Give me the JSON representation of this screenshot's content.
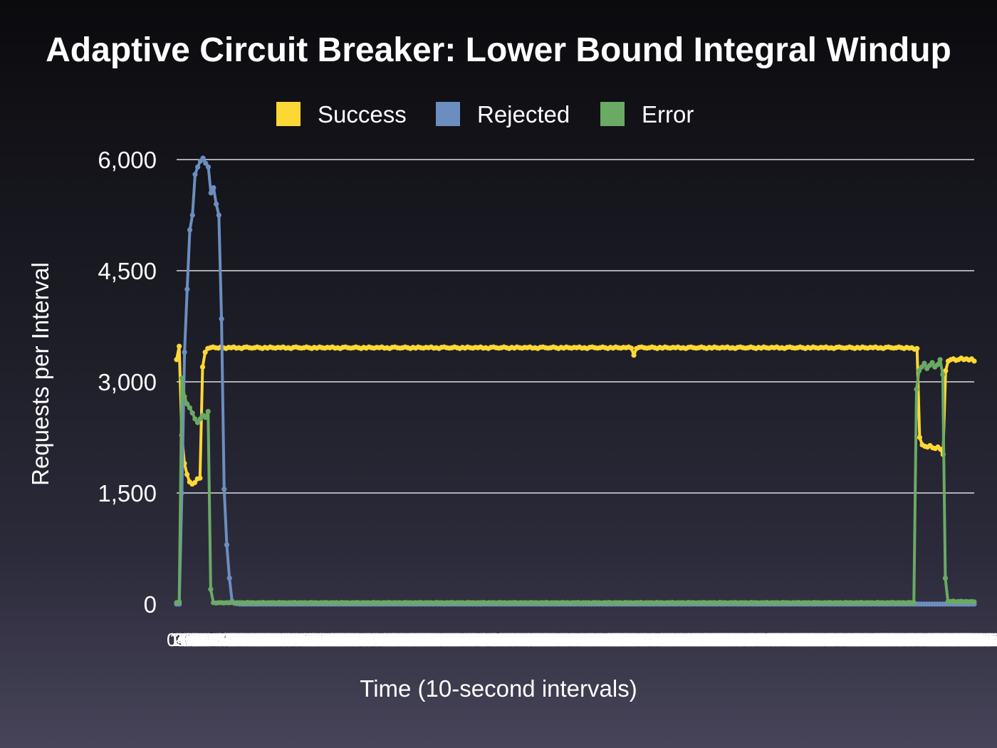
{
  "chart_data": {
    "type": "line",
    "title": "Adaptive Circuit Breaker: Lower Bound Integral Windup",
    "xlabel": "Time (10-second intervals)",
    "ylabel": "Requests per Interval",
    "ylim": [
      0,
      6000
    ],
    "yticks": [
      "0",
      "1,500",
      "3,000",
      "4,500",
      "6,000"
    ],
    "grid": true,
    "legend_position": "top",
    "xtick_labels": [
      "0s",
      "10s",
      "20s",
      "30s",
      "40s",
      "50s",
      "60s",
      "70s",
      "80s",
      "90s",
      "100s",
      "110s",
      "120s",
      "130s",
      "140s",
      "150s",
      "160s",
      "170s",
      "180s",
      "190s",
      "200s",
      "210s",
      "220s",
      "230s",
      "240s",
      "250s",
      "260s",
      "270s",
      "280s",
      "290s",
      "300s",
      "310s",
      "320s",
      "330s",
      "340s",
      "350s",
      "360s",
      "370s",
      "380s",
      "390s",
      "400s",
      "410s",
      "420s",
      "430s",
      "440s",
      "450s",
      "460s",
      "470s",
      "480s",
      "490s",
      "500s",
      "510s",
      "520s",
      "530s",
      "540s",
      "550s",
      "560s",
      "570s",
      "580s",
      "590s",
      "600s",
      "610s",
      "620s",
      "630s",
      "640s",
      "650s",
      "660s",
      "670s",
      "680s",
      "690s",
      "700s",
      "710s",
      "720s",
      "730s",
      "740s",
      "750s",
      "760s",
      "770s",
      "780s",
      "790s",
      "800s",
      "810s",
      "820s",
      "830s",
      "840s",
      "850s",
      "860s",
      "870s",
      "880s",
      "890s",
      "900s",
      "910s",
      "920s",
      "930s",
      "940s",
      "950s",
      "960s",
      "970s",
      "980s",
      "990s",
      "1000s",
      "1010s",
      "1020s",
      "1030s",
      "1040s",
      "1050s",
      "1060s",
      "1070s",
      "1080s",
      "1090s",
      "1100s",
      "1110s",
      "1120s",
      "1130s",
      "1140s",
      "1150s",
      "1160s",
      "1170s",
      "1180s",
      "1190s",
      "1200s",
      "1210s",
      "1220s",
      "1230s",
      "1240s",
      "1250s",
      "1260s",
      "1270s",
      "1280s",
      "1290s",
      "1300s",
      "1310s",
      "1320s",
      "1330s",
      "1340s",
      "1350s",
      "1360s",
      "1370s",
      "1380s",
      "1390s",
      "1400s",
      "1410s",
      "1420s",
      "1430s",
      "1440s",
      "1450s",
      "1460s",
      "1470s",
      "1480s",
      "1490s",
      "1500s",
      "1510s",
      "1520s",
      "1530s",
      "1540s",
      "1550s",
      "1560s",
      "1570s",
      "1580s",
      "1590s",
      "1600s",
      "1610s",
      "1620s",
      "1630s",
      "1640s",
      "1650s",
      "1660s",
      "1670s",
      "1680s",
      "1690s",
      "1700s",
      "1710s",
      "1720s",
      "1730s",
      "1740s",
      "1750s",
      "1760s",
      "1770s",
      "1780s",
      "1790s",
      "1800s",
      "1810s",
      "1820s",
      "1830s",
      "1840s",
      "1850s",
      "1860s",
      "1870s",
      "1880s",
      "1890s",
      "1900s",
      "1910s",
      "1920s",
      "1930s",
      "1940s",
      "1950s",
      "1960s",
      "1970s",
      "1980s",
      "1990s",
      "2000s",
      "2010s",
      "2020s",
      "2030s",
      "2040s",
      "2050s",
      "2060s",
      "2070s",
      "2080s",
      "2090s",
      "2100s",
      "2110s",
      "2120s",
      "2130s",
      "2140s",
      "2150s",
      "2160s",
      "2170s",
      "2180s",
      "2190s",
      "2200s",
      "2210s",
      "2220s",
      "2230s",
      "2240s",
      "2250s",
      "2260s",
      "2270s",
      "2280s",
      "2290s",
      "2300s",
      "2310s",
      "2320s",
      "2330s",
      "2340s",
      "2350s",
      "2360s",
      "2370s",
      "2380s",
      "2390s",
      "2400s",
      "2410s",
      "2420s",
      "2430s",
      "2440s",
      "2450s",
      "2460s",
      "2470s",
      "2480s",
      "2490s",
      "2500s",
      "2510s",
      "2520s",
      "2530s",
      "2540s",
      "2550s",
      "2560s",
      "2570s",
      "2580s",
      "2590s",
      "2600s",
      "2610s",
      "2620s",
      "2630s",
      "2640s",
      "2650s",
      "2660s",
      "2670s",
      "2680s",
      "2690s",
      "2700s",
      "2710s",
      "2720s",
      "2730s",
      "2740s",
      "2750s",
      "2760s",
      "2770s",
      "2780s",
      "2790s",
      "2800s",
      "2810s",
      "2820s",
      "2830s",
      "2840s",
      "2850s",
      "2860s",
      "2870s",
      "2880s",
      "2890s",
      "2900s",
      "2910s",
      "2920s",
      "2930s",
      "2940s",
      "2950s",
      "2960s",
      "2970s",
      "2980s",
      "2990s"
    ],
    "series": [
      {
        "name": "Success",
        "color": "#fdd835",
        "values": [
          3300,
          3480,
          2280,
          1900,
          1750,
          1650,
          1620,
          1640,
          1690,
          1700,
          3200,
          3400,
          3450,
          3460,
          3470,
          3460,
          3455,
          3470,
          3460,
          3450,
          3465,
          3460,
          3470,
          3455,
          3460,
          3450,
          3465,
          3470,
          3460,
          3455,
          3460,
          3470,
          3460,
          3450,
          3465,
          3455,
          3470,
          3460,
          3455,
          3465,
          3460,
          3470,
          3455,
          3460,
          3450,
          3465,
          3470,
          3460,
          3455,
          3460,
          3470,
          3460,
          3450,
          3465,
          3455,
          3470,
          3460,
          3455,
          3465,
          3460,
          3470,
          3455,
          3460,
          3450,
          3465,
          3470,
          3460,
          3455,
          3460,
          3470,
          3460,
          3450,
          3465,
          3455,
          3470,
          3460,
          3455,
          3465,
          3460,
          3470,
          3455,
          3460,
          3450,
          3465,
          3470,
          3460,
          3455,
          3460,
          3470,
          3460,
          3450,
          3465,
          3455,
          3470,
          3460,
          3455,
          3465,
          3460,
          3470,
          3455,
          3460,
          3450,
          3465,
          3470,
          3460,
          3455,
          3460,
          3470,
          3460,
          3450,
          3465,
          3455,
          3470,
          3460,
          3455,
          3465,
          3460,
          3470,
          3455,
          3460,
          3450,
          3465,
          3470,
          3460,
          3455,
          3460,
          3470,
          3460,
          3450,
          3465,
          3455,
          3470,
          3460,
          3455,
          3465,
          3460,
          3470,
          3455,
          3460,
          3450,
          3465,
          3470,
          3460,
          3455,
          3460,
          3470,
          3460,
          3450,
          3465,
          3455,
          3470,
          3460,
          3455,
          3465,
          3460,
          3470,
          3455,
          3460,
          3450,
          3465,
          3470,
          3460,
          3455,
          3460,
          3470,
          3460,
          3450,
          3465,
          3455,
          3470,
          3460,
          3455,
          3465,
          3460,
          3470,
          3455,
          3360,
          3450,
          3465,
          3470,
          3460,
          3455,
          3460,
          3470,
          3460,
          3450,
          3465,
          3455,
          3470,
          3460,
          3455,
          3465,
          3460,
          3470,
          3455,
          3460,
          3450,
          3465,
          3470,
          3460,
          3455,
          3460,
          3470,
          3460,
          3450,
          3465,
          3455,
          3470,
          3460,
          3455,
          3465,
          3460,
          3470,
          3455,
          3460,
          3450,
          3465,
          3470,
          3460,
          3455,
          3460,
          3470,
          3460,
          3450,
          3465,
          3455,
          3470,
          3460,
          3455,
          3465,
          3460,
          3470,
          3455,
          3460,
          3450,
          3465,
          3470,
          3460,
          3455,
          3460,
          3470,
          3460,
          3450,
          3465,
          3455,
          3470,
          3460,
          3455,
          3465,
          3460,
          3470,
          3455,
          3460,
          3450,
          3465,
          3470,
          3460,
          3455,
          3460,
          3470,
          3460,
          3450,
          3465,
          3455,
          3470,
          3460,
          3455,
          3465,
          3460,
          3470,
          3455,
          3460,
          3450,
          3465,
          3470,
          3460,
          3455,
          3460,
          3470,
          3460,
          3450,
          3465,
          3455,
          3460,
          3440,
          3450,
          2250,
          2150,
          2130,
          2120,
          2140,
          2110,
          2100,
          2120,
          2090,
          2020,
          3150,
          3280,
          3300,
          3310,
          3290,
          3300,
          3320,
          3300,
          3310,
          3295,
          3310,
          3280
        ]
      },
      {
        "name": "Rejected",
        "color": "#6c8ebf",
        "values": [
          0,
          0,
          1500,
          3400,
          4250,
          5050,
          5250,
          5800,
          5900,
          5980,
          6020,
          5950,
          5900,
          5550,
          5620,
          5400,
          5250,
          3850,
          1550,
          800,
          350,
          40,
          10,
          5,
          0,
          0,
          0,
          0,
          0,
          0,
          0,
          0,
          0,
          0,
          0,
          0,
          0,
          0,
          0,
          0,
          0,
          0,
          0,
          0,
          0,
          0,
          0,
          0,
          0,
          0,
          0,
          0,
          0,
          0,
          0,
          0,
          0,
          0,
          0,
          0,
          0,
          0,
          0,
          0,
          0,
          0,
          0,
          0,
          0,
          0,
          0,
          0,
          0,
          0,
          0,
          0,
          0,
          0,
          0,
          0,
          0,
          0,
          0,
          0,
          0,
          0,
          0,
          0,
          0,
          0,
          0,
          0,
          0,
          0,
          0,
          0,
          0,
          0,
          0,
          0,
          0,
          0,
          0,
          0,
          0,
          0,
          0,
          0,
          0,
          0,
          0,
          0,
          0,
          0,
          0,
          0,
          0,
          0,
          0,
          0,
          0,
          0,
          0,
          0,
          0,
          0,
          0,
          0,
          0,
          0,
          0,
          0,
          0,
          0,
          0,
          0,
          0,
          0,
          0,
          0,
          0,
          0,
          0,
          0,
          0,
          0,
          0,
          0,
          0,
          0,
          0,
          0,
          0,
          0,
          0,
          0,
          0,
          0,
          0,
          0,
          0,
          0,
          0,
          0,
          0,
          0,
          0,
          0,
          0,
          0,
          0,
          0,
          0,
          0,
          0,
          0,
          0,
          0,
          0,
          0,
          0,
          0,
          0,
          0,
          0,
          0,
          0,
          0,
          0,
          0,
          0,
          0,
          0,
          0,
          0,
          0,
          0,
          0,
          0,
          0,
          0,
          0,
          0,
          0,
          0,
          0,
          0,
          0,
          0,
          0,
          0,
          0,
          0,
          0,
          0,
          0,
          0,
          0,
          0,
          0,
          0,
          0,
          0,
          0,
          0,
          0,
          0,
          0,
          0,
          0,
          0,
          0,
          0,
          0,
          0,
          0,
          0,
          0,
          0,
          0,
          0,
          0,
          0,
          0,
          0,
          0,
          0,
          0,
          0,
          0,
          0,
          0,
          0,
          0,
          0,
          0,
          0,
          0,
          0,
          0,
          0,
          0,
          0,
          0,
          0,
          0,
          0,
          0,
          0,
          0,
          0,
          0,
          0,
          0,
          0,
          0,
          0,
          0,
          0,
          0,
          0,
          0,
          0,
          0,
          0,
          0,
          0,
          0,
          0,
          0,
          0,
          0,
          0,
          0,
          0,
          0,
          0,
          0,
          0,
          0,
          0,
          0,
          0
        ]
      },
      {
        "name": "Error",
        "color": "#6aaa64",
        "values": [
          20,
          30,
          3050,
          2800,
          2700,
          2650,
          2580,
          2500,
          2450,
          2500,
          2550,
          2520,
          2600,
          200,
          20,
          15,
          18,
          20,
          15,
          20,
          18,
          22,
          15,
          20,
          18,
          20,
          15,
          22,
          18,
          20,
          15,
          20,
          18,
          22,
          15,
          20,
          18,
          20,
          15,
          22,
          18,
          20,
          15,
          20,
          18,
          22,
          15,
          20,
          18,
          20,
          15,
          22,
          18,
          20,
          15,
          20,
          18,
          22,
          15,
          20,
          18,
          20,
          15,
          22,
          18,
          20,
          15,
          20,
          18,
          22,
          15,
          20,
          18,
          20,
          15,
          22,
          18,
          20,
          15,
          20,
          18,
          22,
          15,
          20,
          18,
          20,
          15,
          22,
          18,
          20,
          15,
          20,
          18,
          22,
          15,
          20,
          18,
          20,
          15,
          22,
          18,
          20,
          15,
          20,
          18,
          22,
          15,
          20,
          18,
          20,
          15,
          22,
          18,
          20,
          15,
          20,
          18,
          22,
          15,
          20,
          18,
          20,
          15,
          22,
          18,
          20,
          15,
          20,
          18,
          22,
          15,
          20,
          18,
          20,
          15,
          22,
          18,
          20,
          15,
          20,
          18,
          22,
          15,
          20,
          18,
          20,
          15,
          22,
          18,
          20,
          15,
          20,
          18,
          22,
          15,
          20,
          18,
          20,
          15,
          22,
          18,
          20,
          15,
          20,
          18,
          22,
          15,
          20,
          18,
          20,
          15,
          22,
          18,
          20,
          15,
          20,
          18,
          22,
          15,
          20,
          18,
          20,
          15,
          22,
          18,
          20,
          15,
          20,
          18,
          22,
          15,
          20,
          18,
          20,
          15,
          22,
          18,
          20,
          15,
          20,
          18,
          22,
          15,
          20,
          18,
          20,
          15,
          22,
          18,
          20,
          15,
          20,
          18,
          22,
          15,
          20,
          18,
          20,
          15,
          22,
          18,
          20,
          15,
          20,
          18,
          22,
          15,
          20,
          18,
          20,
          15,
          22,
          18,
          20,
          15,
          20,
          18,
          22,
          15,
          20,
          18,
          20,
          15,
          22,
          18,
          20,
          15,
          20,
          18,
          22,
          15,
          20,
          18,
          20,
          15,
          22,
          18,
          20,
          15,
          20,
          18,
          22,
          15,
          20,
          18,
          20,
          15,
          22,
          18,
          20,
          15,
          20,
          18,
          22,
          15,
          20,
          18,
          20,
          15,
          22,
          18,
          20,
          2900,
          3150,
          3200,
          3250,
          3180,
          3220,
          3260,
          3200,
          3230,
          3300,
          3100,
          350,
          30,
          35,
          40,
          30,
          35,
          38,
          32,
          35,
          30,
          35,
          30
        ]
      }
    ]
  }
}
